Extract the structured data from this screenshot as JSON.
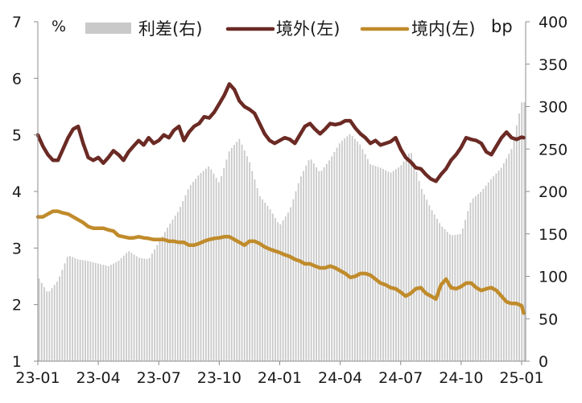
{
  "chart_data": {
    "type": "bar+line",
    "title": "",
    "left_axis": {
      "unit_label": "%",
      "range": [
        1,
        7
      ],
      "ticks": [
        1,
        2,
        3,
        4,
        5,
        6,
        7
      ],
      "tick_labels": [
        "1",
        "2",
        "3",
        "4",
        "5",
        "6",
        "7"
      ]
    },
    "right_axis": {
      "unit_label": "bp",
      "range": [
        0,
        400
      ],
      "ticks": [
        0,
        50,
        100,
        150,
        200,
        250,
        300,
        350,
        400
      ],
      "tick_labels": [
        "0",
        "50",
        "100",
        "150",
        "200",
        "250",
        "300",
        "350",
        "400"
      ]
    },
    "x_range": [
      0,
      24.2
    ],
    "x_ticks": [
      0,
      3,
      6,
      9,
      12,
      15,
      18,
      21,
      24
    ],
    "x_tick_labels": [
      "23-01",
      "23-04",
      "23-07",
      "23-10",
      "24-01",
      "24-04",
      "24-07",
      "24-10",
      "25-01"
    ],
    "grid": false,
    "legend_position": "top",
    "series": [
      {
        "name": "利差(右)",
        "kind": "bar",
        "axis": "right",
        "color": "#c9c9c9",
        "x": [
          0.0,
          0.5,
          1.0,
          1.5,
          2.0,
          2.5,
          3.0,
          3.5,
          4.0,
          4.5,
          5.0,
          5.5,
          6.0,
          6.5,
          7.0,
          7.5,
          8.0,
          8.5,
          9.0,
          9.5,
          10.0,
          10.5,
          11.0,
          11.5,
          12.0,
          12.5,
          13.0,
          13.5,
          14.0,
          14.5,
          15.0,
          15.5,
          16.0,
          16.5,
          17.0,
          17.5,
          18.0,
          18.5,
          19.0,
          19.5,
          20.0,
          20.5,
          21.0,
          21.5,
          22.0,
          22.5,
          23.0,
          23.5,
          24.0
        ],
        "values": [
          100,
          80,
          95,
          125,
          120,
          118,
          115,
          112,
          118,
          130,
          122,
          120,
          140,
          160,
          178,
          205,
          220,
          230,
          210,
          248,
          262,
          235,
          195,
          180,
          160,
          178,
          215,
          240,
          222,
          238,
          258,
          268,
          255,
          232,
          228,
          222,
          230,
          248,
          205,
          180,
          160,
          148,
          150,
          190,
          200,
          215,
          228,
          250,
          305
        ]
      },
      {
        "name": "境外(左)",
        "kind": "line",
        "axis": "left",
        "color": "#6b2a24",
        "x": [
          0.0,
          0.25,
          0.5,
          0.75,
          1.0,
          1.25,
          1.5,
          1.75,
          2.0,
          2.25,
          2.5,
          2.75,
          3.0,
          3.25,
          3.5,
          3.75,
          4.0,
          4.25,
          4.5,
          4.75,
          5.0,
          5.25,
          5.5,
          5.75,
          6.0,
          6.25,
          6.5,
          6.75,
          7.0,
          7.25,
          7.5,
          7.75,
          8.0,
          8.25,
          8.5,
          8.75,
          9.0,
          9.25,
          9.5,
          9.75,
          10.0,
          10.25,
          10.5,
          10.75,
          11.0,
          11.25,
          11.5,
          11.75,
          12.0,
          12.25,
          12.5,
          12.75,
          13.0,
          13.25,
          13.5,
          13.75,
          14.0,
          14.25,
          14.5,
          14.75,
          15.0,
          15.25,
          15.5,
          15.75,
          16.0,
          16.25,
          16.5,
          16.75,
          17.0,
          17.25,
          17.5,
          17.75,
          18.0,
          18.25,
          18.5,
          18.75,
          19.0,
          19.25,
          19.5,
          19.75,
          20.0,
          20.25,
          20.5,
          20.75,
          21.0,
          21.25,
          21.5,
          21.75,
          22.0,
          22.25,
          22.5,
          22.75,
          23.0,
          23.25,
          23.5,
          23.75,
          24.0,
          24.1
        ],
        "values": [
          5.0,
          4.8,
          4.65,
          4.55,
          4.55,
          4.75,
          4.95,
          5.1,
          5.15,
          4.85,
          4.6,
          4.55,
          4.6,
          4.5,
          4.6,
          4.72,
          4.65,
          4.55,
          4.7,
          4.8,
          4.9,
          4.82,
          4.95,
          4.85,
          4.9,
          5.0,
          4.95,
          5.08,
          5.15,
          4.9,
          5.05,
          5.15,
          5.2,
          5.32,
          5.3,
          5.4,
          5.55,
          5.7,
          5.9,
          5.8,
          5.6,
          5.5,
          5.45,
          5.38,
          5.2,
          5.02,
          4.9,
          4.85,
          4.9,
          4.95,
          4.92,
          4.85,
          5.0,
          5.15,
          5.2,
          5.1,
          5.02,
          5.1,
          5.2,
          5.18,
          5.2,
          5.25,
          5.25,
          5.12,
          5.02,
          4.95,
          4.85,
          4.9,
          4.82,
          4.85,
          4.88,
          4.95,
          4.75,
          4.6,
          4.52,
          4.42,
          4.4,
          4.3,
          4.22,
          4.18,
          4.3,
          4.4,
          4.55,
          4.65,
          4.78,
          4.95,
          4.92,
          4.9,
          4.85,
          4.7,
          4.65,
          4.8,
          4.95,
          5.05,
          4.95,
          4.92,
          4.96,
          4.95
        ]
      },
      {
        "name": "境内(左)",
        "kind": "line",
        "axis": "left",
        "color": "#c08b2b",
        "x": [
          0.0,
          0.25,
          0.5,
          0.75,
          1.0,
          1.25,
          1.5,
          1.75,
          2.0,
          2.25,
          2.5,
          2.75,
          3.0,
          3.25,
          3.5,
          3.75,
          4.0,
          4.25,
          4.5,
          4.75,
          5.0,
          5.25,
          5.5,
          5.75,
          6.0,
          6.25,
          6.5,
          6.75,
          7.0,
          7.25,
          7.5,
          7.75,
          8.0,
          8.25,
          8.5,
          8.75,
          9.0,
          9.25,
          9.5,
          9.75,
          10.0,
          10.25,
          10.5,
          10.75,
          11.0,
          11.25,
          11.5,
          11.75,
          12.0,
          12.25,
          12.5,
          12.75,
          13.0,
          13.25,
          13.5,
          13.75,
          14.0,
          14.25,
          14.5,
          14.75,
          15.0,
          15.25,
          15.5,
          15.75,
          16.0,
          16.25,
          16.5,
          16.75,
          17.0,
          17.25,
          17.5,
          17.75,
          18.0,
          18.25,
          18.5,
          18.75,
          19.0,
          19.25,
          19.5,
          19.75,
          20.0,
          20.25,
          20.5,
          20.75,
          21.0,
          21.25,
          21.5,
          21.75,
          22.0,
          22.25,
          22.5,
          22.75,
          23.0,
          23.25,
          23.5,
          23.75,
          24.0,
          24.1
        ],
        "values": [
          3.55,
          3.55,
          3.6,
          3.65,
          3.65,
          3.62,
          3.6,
          3.55,
          3.5,
          3.45,
          3.38,
          3.35,
          3.35,
          3.35,
          3.32,
          3.3,
          3.22,
          3.2,
          3.18,
          3.18,
          3.2,
          3.18,
          3.17,
          3.15,
          3.15,
          3.15,
          3.12,
          3.12,
          3.1,
          3.1,
          3.05,
          3.05,
          3.08,
          3.12,
          3.15,
          3.17,
          3.18,
          3.2,
          3.2,
          3.15,
          3.1,
          3.05,
          3.12,
          3.12,
          3.08,
          3.02,
          2.98,
          2.95,
          2.92,
          2.88,
          2.85,
          2.8,
          2.77,
          2.72,
          2.72,
          2.68,
          2.65,
          2.65,
          2.68,
          2.65,
          2.6,
          2.55,
          2.48,
          2.5,
          2.55,
          2.55,
          2.52,
          2.45,
          2.38,
          2.35,
          2.3,
          2.28,
          2.22,
          2.15,
          2.2,
          2.28,
          2.3,
          2.2,
          2.15,
          2.1,
          2.35,
          2.45,
          2.3,
          2.28,
          2.32,
          2.38,
          2.38,
          2.3,
          2.25,
          2.28,
          2.3,
          2.25,
          2.15,
          2.05,
          2.02,
          2.02,
          1.98,
          1.85
        ]
      }
    ]
  }
}
